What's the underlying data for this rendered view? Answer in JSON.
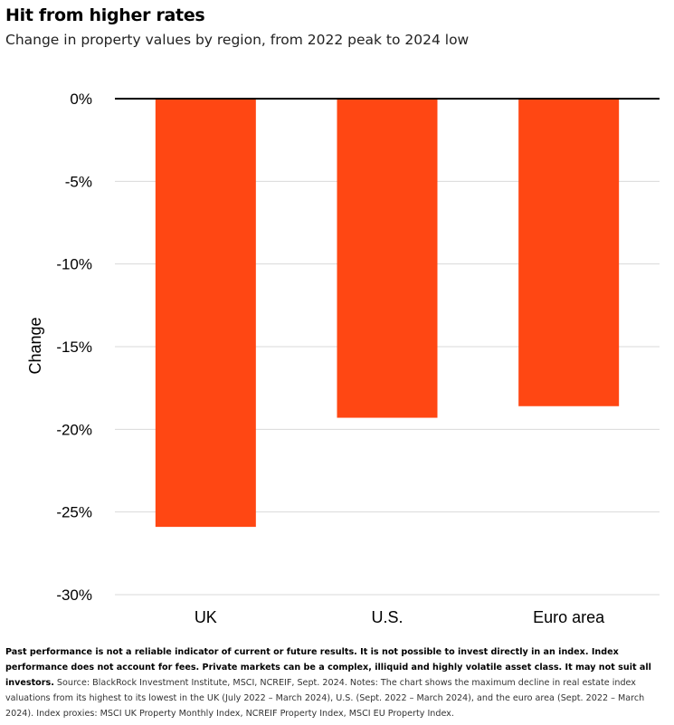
{
  "header": {
    "title": "Hit from higher rates",
    "subtitle": "Change in property values by region, from 2022 peak to 2024 low"
  },
  "chart_data": {
    "type": "bar",
    "categories": [
      "UK",
      "U.S.",
      "Euro area"
    ],
    "values": [
      -25.9,
      -19.3,
      -18.6
    ],
    "ylabel": "Change",
    "xlabel": "",
    "ylim": [
      -30,
      0
    ],
    "yticks": [
      0,
      -5,
      -10,
      -15,
      -20,
      -25,
      -30
    ],
    "ytick_labels": [
      "0%",
      "-5%",
      "-10%",
      "-15%",
      "-20%",
      "-25%",
      "-30%"
    ],
    "bar_color": "#FF4713",
    "grid": true,
    "legend": "none"
  },
  "footnote": {
    "bold": "Past performance is not a reliable indicator of current or future results. It is not possible to invest directly in an index. Index performance does not account for fees. Private markets can be a complex, illiquid and highly volatile asset class. It may not suit all investors.",
    "text": " Source: BlackRock Investment Institute, MSCI, NCREIF, Sept. 2024. Notes: The chart shows the maximum decline in real estate index valuations from its highest to its lowest in the UK (July 2022 – March 2024), U.S. (Sept. 2022 – March 2024), and the euro area (Sept. 2022 – March 2024). Index proxies: MSCI UK Property Monthly Index, NCREIF Property Index, MSCI EU Property Index."
  }
}
